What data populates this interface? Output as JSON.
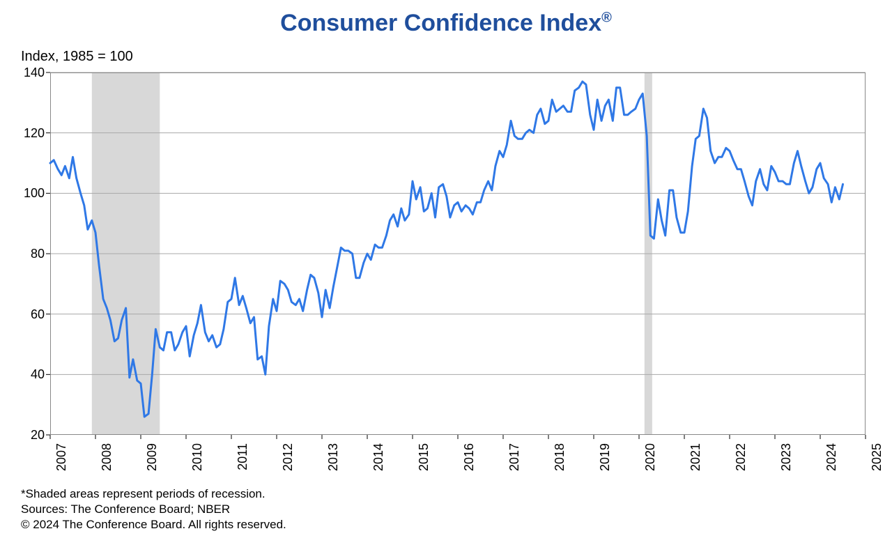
{
  "chart": {
    "type": "line",
    "title": "Consumer Confidence Index",
    "title_suffix": "®",
    "title_color": "#1f4e9c",
    "title_fontsize": 34,
    "subtitle": "Index, 1985 = 100",
    "subtitle_fontsize": 20,
    "footnote1": "*Shaded areas represent periods of recession.",
    "footnote2": "Sources: The Conference Board;   NBER",
    "footnote3": "© 2024 The Conference Board. All rights reserved.",
    "background_color": "#ffffff",
    "plot_background_color": "#ffffff",
    "border_color": "#888888",
    "grid_color": "#a8a8a8",
    "line_color": "#2f78e6",
    "line_width": 3,
    "shade_color": "#d8d8d8",
    "axis_tick_color": "#000000",
    "xlim": [
      2007,
      2025
    ],
    "ylim": [
      20,
      140
    ],
    "yticks": [
      20,
      40,
      60,
      80,
      100,
      120,
      140
    ],
    "xticks": [
      2007,
      2008,
      2009,
      2010,
      2011,
      2012,
      2013,
      2014,
      2015,
      2016,
      2017,
      2018,
      2019,
      2020,
      2021,
      2022,
      2023,
      2024,
      2025
    ],
    "xtick_labels": [
      "2007",
      "2008",
      "2009",
      "2010",
      "2011",
      "2012",
      "2013",
      "2014",
      "2015",
      "2016",
      "2017",
      "2018",
      "2019",
      "2020",
      "2021",
      "2022",
      "2023",
      "2024",
      "2025"
    ],
    "recession_bands": [
      {
        "start": 2007.92,
        "end": 2009.42
      },
      {
        "start": 2020.12,
        "end": 2020.29
      }
    ],
    "series": {
      "x": [
        2007.0,
        2007.08,
        2007.17,
        2007.25,
        2007.33,
        2007.42,
        2007.5,
        2007.58,
        2007.67,
        2007.75,
        2007.83,
        2007.92,
        2008.0,
        2008.08,
        2008.17,
        2008.25,
        2008.33,
        2008.42,
        2008.5,
        2008.58,
        2008.67,
        2008.75,
        2008.83,
        2008.92,
        2009.0,
        2009.08,
        2009.17,
        2009.25,
        2009.33,
        2009.42,
        2009.5,
        2009.58,
        2009.67,
        2009.75,
        2009.83,
        2009.92,
        2010.0,
        2010.08,
        2010.17,
        2010.25,
        2010.33,
        2010.42,
        2010.5,
        2010.58,
        2010.67,
        2010.75,
        2010.83,
        2010.92,
        2011.0,
        2011.08,
        2011.17,
        2011.25,
        2011.33,
        2011.42,
        2011.5,
        2011.58,
        2011.67,
        2011.75,
        2011.83,
        2011.92,
        2012.0,
        2012.08,
        2012.17,
        2012.25,
        2012.33,
        2012.42,
        2012.5,
        2012.58,
        2012.67,
        2012.75,
        2012.83,
        2012.92,
        2013.0,
        2013.08,
        2013.17,
        2013.25,
        2013.33,
        2013.42,
        2013.5,
        2013.58,
        2013.67,
        2013.75,
        2013.83,
        2013.92,
        2014.0,
        2014.08,
        2014.17,
        2014.25,
        2014.33,
        2014.42,
        2014.5,
        2014.58,
        2014.67,
        2014.75,
        2014.83,
        2014.92,
        2015.0,
        2015.08,
        2015.17,
        2015.25,
        2015.33,
        2015.42,
        2015.5,
        2015.58,
        2015.67,
        2015.75,
        2015.83,
        2015.92,
        2016.0,
        2016.08,
        2016.17,
        2016.25,
        2016.33,
        2016.42,
        2016.5,
        2016.58,
        2016.67,
        2016.75,
        2016.83,
        2016.92,
        2017.0,
        2017.08,
        2017.17,
        2017.25,
        2017.33,
        2017.42,
        2017.5,
        2017.58,
        2017.67,
        2017.75,
        2017.83,
        2017.92,
        2018.0,
        2018.08,
        2018.17,
        2018.25,
        2018.33,
        2018.42,
        2018.5,
        2018.58,
        2018.67,
        2018.75,
        2018.83,
        2018.92,
        2019.0,
        2019.08,
        2019.17,
        2019.25,
        2019.33,
        2019.42,
        2019.5,
        2019.58,
        2019.67,
        2019.75,
        2019.83,
        2019.92,
        2020.0,
        2020.08,
        2020.17,
        2020.25,
        2020.33,
        2020.42,
        2020.5,
        2020.58,
        2020.67,
        2020.75,
        2020.83,
        2020.92,
        2021.0,
        2021.08,
        2021.17,
        2021.25,
        2021.33,
        2021.42,
        2021.5,
        2021.58,
        2021.67,
        2021.75,
        2021.83,
        2021.92,
        2022.0,
        2022.08,
        2022.17,
        2022.25,
        2022.33,
        2022.42,
        2022.5,
        2022.58,
        2022.67,
        2022.75,
        2022.83,
        2022.92,
        2023.0,
        2023.08,
        2023.17,
        2023.25,
        2023.33,
        2023.42,
        2023.5,
        2023.58,
        2023.67,
        2023.75,
        2023.83,
        2023.92,
        2024.0,
        2024.08,
        2024.17,
        2024.25,
        2024.33,
        2024.42,
        2024.5
      ],
      "y": [
        110,
        111,
        108,
        106,
        109,
        105,
        112,
        105,
        100,
        96,
        88,
        91,
        87,
        76,
        65,
        62,
        58,
        51,
        52,
        58,
        62,
        39,
        45,
        38,
        37,
        26,
        27,
        40,
        55,
        49,
        48,
        54,
        54,
        48,
        50,
        54,
        56,
        46,
        53,
        57,
        63,
        54,
        51,
        53,
        49,
        50,
        55,
        64,
        65,
        72,
        63,
        66,
        62,
        57,
        59,
        45,
        46,
        40,
        56,
        65,
        61,
        71,
        70,
        68,
        64,
        63,
        65,
        61,
        68,
        73,
        72,
        67,
        59,
        68,
        62,
        69,
        75,
        82,
        81,
        81,
        80,
        72,
        72,
        77,
        80,
        78,
        83,
        82,
        82,
        86,
        91,
        93,
        89,
        95,
        91,
        93,
        104,
        98,
        102,
        94,
        95,
        100,
        92,
        102,
        103,
        99,
        92,
        96,
        97,
        94,
        96,
        95,
        93,
        97,
        97,
        101,
        104,
        101,
        109,
        114,
        112,
        116,
        124,
        119,
        118,
        118,
        120,
        121,
        120,
        126,
        128,
        123,
        124,
        131,
        127,
        128,
        129,
        127,
        127,
        134,
        135,
        137,
        136,
        126,
        121,
        131,
        124,
        129,
        131,
        124,
        135,
        135,
        126,
        126,
        127,
        128,
        131,
        133,
        119,
        86,
        85,
        98,
        91,
        86,
        101,
        101,
        92,
        87,
        87,
        94,
        109,
        118,
        119,
        128,
        125,
        114,
        110,
        112,
        112,
        115,
        114,
        111,
        108,
        108,
        104,
        99,
        96,
        104,
        108,
        103,
        101,
        109,
        107,
        104,
        104,
        103,
        103,
        110,
        114,
        109,
        104,
        100,
        102,
        108,
        110,
        105,
        103,
        97,
        102,
        98,
        103
      ]
    }
  }
}
